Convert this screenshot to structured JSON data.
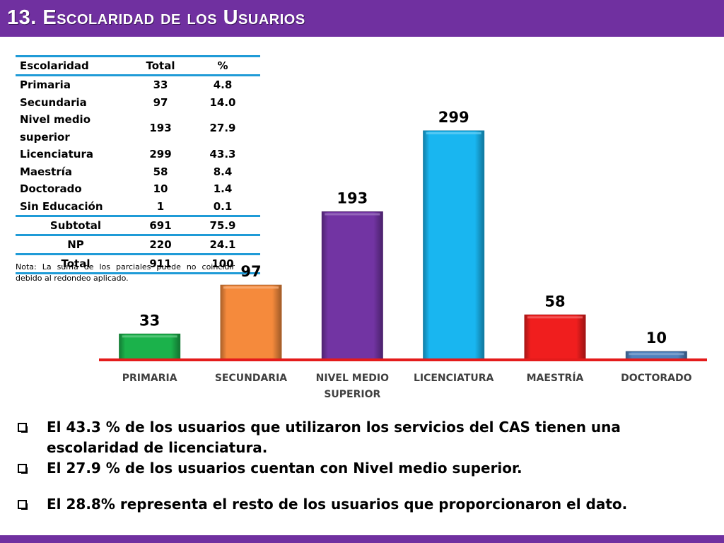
{
  "header": {
    "title": "13. Escolaridad de los Usuarios"
  },
  "table": {
    "headers": [
      "Escolaridad",
      "Total",
      "%"
    ],
    "rows": [
      [
        "Primaria",
        "33",
        "4.8"
      ],
      [
        "Secundaria",
        "97",
        "14.0"
      ],
      [
        "Nivel medio superior",
        "193",
        "27.9"
      ],
      [
        "Licenciatura",
        "299",
        "43.3"
      ],
      [
        "Maestría",
        "58",
        "8.4"
      ],
      [
        "Doctorado",
        "10",
        "1.4"
      ],
      [
        "Sin Educación",
        "1",
        "0.1"
      ]
    ],
    "summary": [
      [
        "Subtotal",
        "691",
        "75.9"
      ],
      [
        "NP",
        "220",
        "24.1"
      ],
      [
        "Total",
        "911",
        "100"
      ]
    ],
    "note": "Nota: La suma de los parciales puede no coincidir debido al redondeo aplicado."
  },
  "chart_data": {
    "type": "bar",
    "categories": [
      "PRIMARIA",
      "SECUNDARIA",
      "NIVEL MEDIO SUPERIOR",
      "LICENCIATURA",
      "MAESTRÍA",
      "DOCTORADO"
    ],
    "category_lines": [
      [
        "PRIMARIA"
      ],
      [
        "SECUNDARIA"
      ],
      [
        "NIVEL MEDIO",
        "SUPERIOR"
      ],
      [
        "LICENCIATURA"
      ],
      [
        "MAESTRÍA"
      ],
      [
        "DOCTORADO"
      ]
    ],
    "values": [
      33,
      97,
      193,
      299,
      58,
      10
    ],
    "colors": [
      "#1bb24b",
      "#f58a3c",
      "#7234a3",
      "#19b6f0",
      "#f01e1e",
      "#4f81bd"
    ],
    "baseline_color": "#e41b1b",
    "ylim": [
      0,
      299
    ],
    "grid": false,
    "legend": "none",
    "title": "",
    "xlabel": "",
    "ylabel": ""
  },
  "bullets": [
    "El 43.3 % de los usuarios que utilizaron los servicios del CAS tienen una escolaridad de licenciatura.",
    "El 27.9 % de los usuarios cuentan con Nivel medio superior.",
    "El  28.8% representa el resto de los usuarios que proporcionaron el dato."
  ],
  "colors": {
    "header": "#7030a0",
    "table_rule": "#1f9bd7"
  }
}
